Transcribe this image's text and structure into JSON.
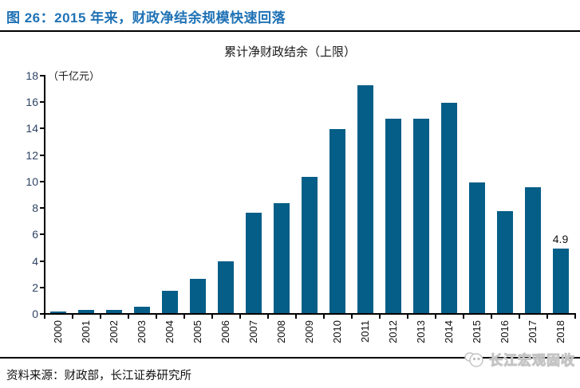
{
  "figure": {
    "title": "图 26：2015 年来，财政净结余规模快速回落",
    "source": "资料来源：财政部，长江证券研究所",
    "watermark": "长江宏观固收"
  },
  "chart_data": {
    "type": "bar",
    "title": "累计净财政结余（上限）",
    "unit_label": "（千亿元）",
    "xlabel": "",
    "ylabel": "",
    "categories": [
      "2000",
      "2001",
      "2002",
      "2003",
      "2004",
      "2005",
      "2006",
      "2007",
      "2008",
      "2009",
      "2010",
      "2011",
      "2012",
      "2013",
      "2014",
      "2015",
      "2016",
      "2017",
      "2018"
    ],
    "values": [
      0.1,
      0.25,
      0.25,
      0.5,
      1.7,
      2.6,
      3.9,
      7.6,
      8.3,
      10.3,
      13.9,
      17.2,
      14.7,
      14.7,
      15.9,
      9.9,
      7.7,
      9.5,
      4.9
    ],
    "ylim": [
      0,
      18
    ],
    "ytick_step": 2,
    "grid": false,
    "legend": false,
    "annotations": [
      {
        "category": "2018",
        "text": "4.9"
      }
    ],
    "bar_color": "#055e87"
  },
  "colors": {
    "figure_title": "#1f72b5",
    "bar": "#055e87",
    "axis": "#000000",
    "ytick_text": "#2e4366",
    "xtick_text": "#111111"
  }
}
